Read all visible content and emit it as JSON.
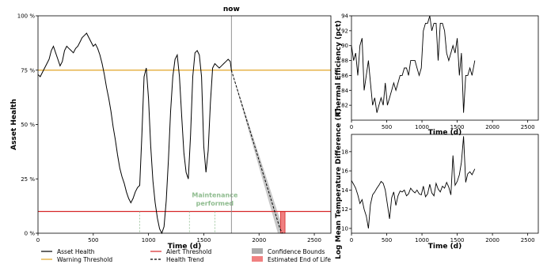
{
  "chart_data": [
    {
      "type": "line",
      "xlabel": "Time (d)",
      "ylabel": "Asset Health",
      "xlim": [
        0,
        2650
      ],
      "ylim": [
        0,
        100
      ],
      "x_ticks": [
        "0",
        "500",
        "1000",
        "1500",
        "2000",
        "2500"
      ],
      "y_ticks": [
        "0 %",
        "25 %",
        "50 %",
        "75 %",
        "100 %"
      ],
      "now_label": "now",
      "now_x": 1750,
      "warning_threshold": 75,
      "alert_threshold": 10,
      "maintenance_label_line1": "Maintenance",
      "maintenance_label_line2": "performed",
      "maintenance_times": [
        920,
        1370,
        1600
      ],
      "series": [
        {
          "name": "Asset Health",
          "color": "#000000",
          "x": [
            0,
            20,
            40,
            60,
            80,
            100,
            120,
            140,
            160,
            180,
            200,
            220,
            240,
            260,
            280,
            300,
            320,
            340,
            360,
            380,
            400,
            420,
            440,
            460,
            480,
            500,
            520,
            540,
            560,
            580,
            600,
            620,
            640,
            660,
            680,
            700,
            720,
            740,
            760,
            780,
            800,
            820,
            840,
            860,
            880,
            900,
            920,
            940,
            960,
            980,
            1000,
            1020,
            1040,
            1060,
            1080,
            1100,
            1120,
            1140,
            1160,
            1180,
            1200,
            1220,
            1240,
            1260,
            1280,
            1300,
            1320,
            1340,
            1360,
            1380,
            1400,
            1420,
            1440,
            1460,
            1480,
            1500,
            1520,
            1540,
            1560,
            1580,
            1600,
            1620,
            1640,
            1660,
            1680,
            1700,
            1720,
            1740,
            1750
          ],
          "y": [
            73,
            72,
            74,
            76,
            78,
            80,
            84,
            86,
            83,
            80,
            77,
            79,
            84,
            86,
            85,
            84,
            83,
            85,
            86,
            88,
            90,
            91,
            92,
            90,
            88,
            86,
            87,
            85,
            82,
            78,
            73,
            67,
            62,
            56,
            49,
            43,
            36,
            30,
            26,
            23,
            19,
            16,
            14,
            16,
            19,
            21,
            22,
            45,
            72,
            76,
            62,
            40,
            24,
            14,
            7,
            2,
            0,
            3,
            15,
            34,
            56,
            72,
            80,
            82,
            72,
            54,
            37,
            28,
            25,
            45,
            72,
            83,
            84,
            82,
            72,
            40,
            28,
            38,
            60,
            76,
            78,
            77,
            76,
            77,
            78,
            79,
            80,
            79,
            75
          ]
        },
        {
          "name": "Warning Threshold",
          "color": "#e0a526"
        },
        {
          "name": "Alert Threshold",
          "color": "#d62728"
        },
        {
          "name": "Health Trend",
          "color": "#000000",
          "x": [
            1750,
            2190,
            2210
          ],
          "y": [
            75,
            2,
            0
          ]
        }
      ],
      "confidence_bounds": {
        "name": "Confidence Bounds",
        "color": "#aaaaaa",
        "x_start": 1750,
        "y_start": 75,
        "x_end_low": 2170,
        "x_end_high": 2230
      },
      "end_of_life": {
        "name": "Estimated End of Life",
        "color": "#f08080",
        "x_start": 2195,
        "x_end": 2235,
        "y_top": 10
      }
    },
    {
      "type": "line",
      "xlabel": "Time (d)",
      "ylabel": "Thermal Efficiency (pct)",
      "xlim": [
        0,
        2650
      ],
      "ylim": [
        80,
        94
      ],
      "x_ticks": [
        "0",
        "500",
        "1000",
        "1500",
        "2000",
        "2500"
      ],
      "y_ticks": [
        "82",
        "84",
        "86",
        "88",
        "90",
        "92",
        "94"
      ],
      "series": [
        {
          "name": "Thermal Efficiency",
          "x": [
            0,
            30,
            60,
            90,
            120,
            150,
            180,
            210,
            240,
            270,
            300,
            330,
            360,
            390,
            420,
            450,
            480,
            510,
            540,
            570,
            600,
            630,
            660,
            690,
            720,
            750,
            780,
            810,
            840,
            870,
            900,
            930,
            960,
            990,
            1020,
            1050,
            1080,
            1110,
            1140,
            1170,
            1200,
            1230,
            1260,
            1290,
            1320,
            1350,
            1380,
            1410,
            1440,
            1470,
            1500,
            1530,
            1560,
            1590,
            1620,
            1650,
            1680,
            1710,
            1750
          ],
          "y": [
            90,
            88,
            89,
            86,
            90,
            91,
            84,
            86,
            88,
            85,
            82,
            83,
            81,
            82,
            83,
            82,
            85,
            82,
            83,
            84,
            85,
            84,
            85,
            86,
            86,
            87,
            87,
            86,
            88,
            88,
            88,
            87,
            86,
            87,
            92,
            93,
            93,
            94,
            92,
            93,
            93,
            88,
            93,
            93,
            92,
            89,
            88,
            89,
            90,
            89,
            91,
            86,
            89,
            81,
            86,
            86,
            87,
            86,
            88
          ]
        }
      ]
    },
    {
      "type": "line",
      "xlabel": "Time (d)",
      "ylabel": "Log Mean Temperature Difference (K)",
      "xlim": [
        0,
        2650
      ],
      "ylim": [
        9.5,
        19.8
      ],
      "x_ticks": [
        "0",
        "500",
        "1000",
        "1500",
        "2000",
        "2500"
      ],
      "y_ticks": [
        "10",
        "12",
        "14",
        "16",
        "18"
      ],
      "series": [
        {
          "name": "LMTD",
          "x": [
            0,
            30,
            60,
            90,
            120,
            150,
            180,
            210,
            240,
            270,
            300,
            330,
            360,
            390,
            420,
            450,
            480,
            510,
            540,
            570,
            600,
            630,
            660,
            690,
            720,
            750,
            780,
            810,
            840,
            870,
            900,
            930,
            960,
            990,
            1020,
            1050,
            1080,
            1110,
            1140,
            1170,
            1200,
            1230,
            1260,
            1290,
            1320,
            1350,
            1380,
            1410,
            1440,
            1470,
            1500,
            1530,
            1560,
            1590,
            1620,
            1650,
            1680,
            1710,
            1750
          ],
          "y": [
            15,
            14.6,
            14.2,
            13.5,
            12.6,
            13,
            12,
            11.3,
            10,
            12.5,
            13.5,
            13.8,
            14.2,
            14.5,
            14.9,
            14.7,
            14,
            12.5,
            11,
            13.2,
            13.8,
            12.4,
            13.4,
            13.9,
            13.8,
            14,
            13.4,
            13.6,
            14.2,
            13.9,
            13.7,
            14,
            13.6,
            13.5,
            14.4,
            13.3,
            13.6,
            14.6,
            13.7,
            13.4,
            14.7,
            14.1,
            13.8,
            14.4,
            14.2,
            14.8,
            14.3,
            13.5,
            17.6,
            14.5,
            14.9,
            15.6,
            16.9,
            19.6,
            14.8,
            15.7,
            15.9,
            15.6,
            16.2
          ]
        }
      ]
    }
  ]
}
